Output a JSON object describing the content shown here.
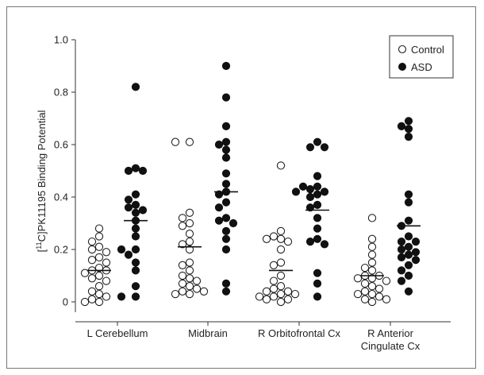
{
  "chart_data": {
    "type": "scatter",
    "title": "",
    "ylabel": "[11C]PK11195 Binding Potential",
    "ylabel_prefix": "[",
    "ylabel_superscript": "11",
    "ylabel_rest": "C]PK11195 Binding Potential",
    "xlabel": "",
    "ylim": [
      -0.05,
      1.0
    ],
    "yticks": [
      "0",
      "0.2",
      "0.4",
      "0.6",
      "0.8",
      "1.0"
    ],
    "yticks_values": [
      0,
      0.2,
      0.4,
      0.6,
      0.8,
      1.0
    ],
    "grid": false,
    "legend_position": "top-right",
    "categories": [
      {
        "line1": "L Cerebellum",
        "line2": ""
      },
      {
        "line1": "Midbrain",
        "line2": ""
      },
      {
        "line1": "R Orbitofrontal Cx",
        "line2": ""
      },
      {
        "line1": "R Anterior",
        "line2": "Cingulate Cx"
      }
    ],
    "series": [
      {
        "name": "Control",
        "marker": "open-circle",
        "groups": [
          {
            "values": [
              0.28,
              0.25,
              0.23,
              0.21,
              0.2,
              0.19,
              0.17,
              0.16,
              0.15,
              0.13,
              0.12,
              0.12,
              0.11,
              0.1,
              0.09,
              0.08,
              0.06,
              0.04,
              0.03,
              0.02,
              0.01,
              0.0,
              0.0
            ],
            "mean": 0.12
          },
          {
            "values": [
              0.61,
              0.61,
              0.34,
              0.32,
              0.3,
              0.29,
              0.26,
              0.23,
              0.22,
              0.2,
              0.15,
              0.14,
              0.12,
              0.1,
              0.09,
              0.08,
              0.07,
              0.06,
              0.05,
              0.04,
              0.04,
              0.03,
              0.03
            ],
            "mean": 0.21
          },
          {
            "values": [
              0.52,
              0.27,
              0.25,
              0.24,
              0.24,
              0.23,
              0.2,
              0.15,
              0.14,
              0.1,
              0.08,
              0.06,
              0.05,
              0.04,
              0.04,
              0.03,
              0.03,
              0.02,
              0.02,
              0.01,
              0.01,
              0.0
            ],
            "mean": 0.12
          },
          {
            "values": [
              0.32,
              0.24,
              0.21,
              0.18,
              0.15,
              0.13,
              0.12,
              0.1,
              0.1,
              0.09,
              0.09,
              0.08,
              0.07,
              0.06,
              0.05,
              0.04,
              0.03,
              0.03,
              0.02,
              0.01,
              0.01,
              0.0
            ],
            "mean": 0.1
          }
        ]
      },
      {
        "name": "ASD",
        "marker": "filled-circle",
        "groups": [
          {
            "values": [
              0.82,
              0.51,
              0.5,
              0.5,
              0.41,
              0.39,
              0.37,
              0.36,
              0.35,
              0.34,
              0.31,
              0.28,
              0.25,
              0.2,
              0.2,
              0.18,
              0.15,
              0.12,
              0.06,
              0.02,
              0.02
            ],
            "mean": 0.31
          },
          {
            "values": [
              0.9,
              0.78,
              0.67,
              0.61,
              0.6,
              0.58,
              0.55,
              0.49,
              0.45,
              0.42,
              0.41,
              0.38,
              0.36,
              0.32,
              0.31,
              0.3,
              0.27,
              0.24,
              0.2,
              0.07,
              0.04
            ],
            "mean": 0.42
          },
          {
            "values": [
              0.61,
              0.59,
              0.59,
              0.48,
              0.44,
              0.44,
              0.43,
              0.42,
              0.42,
              0.41,
              0.4,
              0.37,
              0.36,
              0.32,
              0.28,
              0.24,
              0.23,
              0.22,
              0.11,
              0.07,
              0.02
            ],
            "mean": 0.35
          },
          {
            "values": [
              0.69,
              0.67,
              0.66,
              0.63,
              0.41,
              0.38,
              0.31,
              0.29,
              0.25,
              0.23,
              0.23,
              0.21,
              0.2,
              0.19,
              0.18,
              0.17,
              0.16,
              0.14,
              0.12,
              0.1,
              0.08,
              0.04
            ],
            "mean": 0.29
          }
        ]
      }
    ]
  }
}
